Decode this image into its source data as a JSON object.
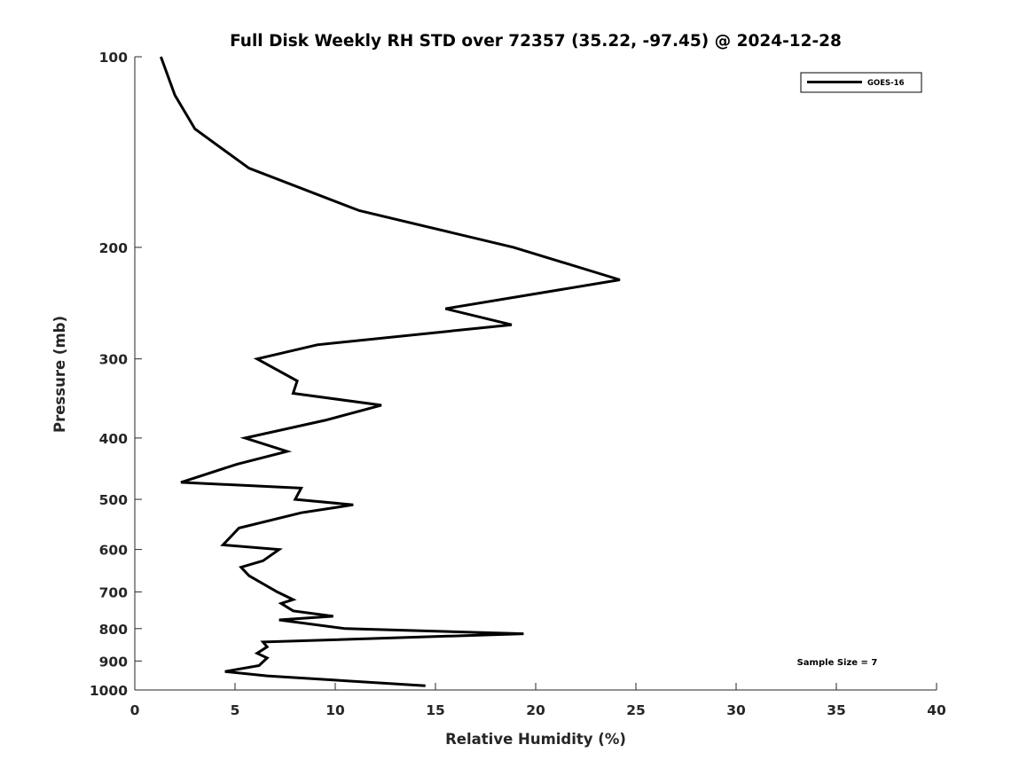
{
  "chart_data": {
    "type": "line",
    "title": "Full Disk Weekly RH STD over 72357 (35.22, -97.45) @ 2024-12-28",
    "xlabel": "Relative Humidity (%)",
    "ylabel": "Pressure (mb)",
    "xlim": [
      0,
      40
    ],
    "ylim": [
      100,
      1000
    ],
    "yscale": "log",
    "y_reversed": true,
    "xticks": [
      0,
      5,
      10,
      15,
      20,
      25,
      30,
      35,
      40
    ],
    "yticks": [
      100,
      200,
      300,
      400,
      500,
      600,
      700,
      800,
      900,
      1000
    ],
    "grid": false,
    "legend": {
      "position": "top-right",
      "entries": [
        "GOES-16"
      ]
    },
    "annotation": "Sample Size = 7",
    "series": [
      {
        "name": "GOES-16",
        "color": "#000000",
        "x": [
          1.3,
          2.0,
          3.0,
          5.7,
          11.2,
          18.9,
          24.2,
          15.5,
          18.8,
          9.1,
          6.1,
          8.1,
          7.9,
          12.3,
          9.5,
          5.5,
          7.6,
          5.1,
          2.3,
          8.3,
          8.0,
          10.9,
          8.3,
          5.2,
          4.4,
          7.2,
          6.4,
          5.3,
          5.7,
          7.1,
          7.9,
          7.3,
          7.9,
          9.9,
          7.2,
          10.5,
          19.4,
          6.4,
          6.6,
          6.1,
          6.6,
          6.2,
          4.5,
          6.6,
          14.5
        ],
        "y": [
          100,
          115,
          130,
          150,
          175,
          200,
          225,
          250,
          265,
          285,
          300,
          325,
          340,
          355,
          375,
          400,
          420,
          440,
          470,
          480,
          500,
          510,
          525,
          555,
          590,
          600,
          625,
          640,
          660,
          700,
          720,
          730,
          750,
          765,
          775,
          800,
          815,
          840,
          855,
          875,
          890,
          915,
          935,
          950,
          985
        ]
      }
    ]
  }
}
